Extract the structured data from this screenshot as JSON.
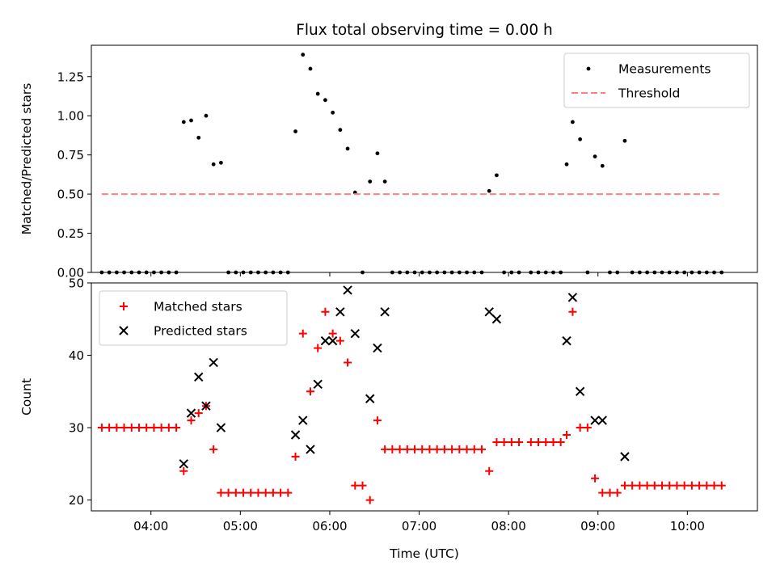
{
  "chart_data": [
    {
      "type": "scatter",
      "title": "Flux total observing time = 0.00 h",
      "xlabel": "",
      "ylabel": "Matched/Predicted stars",
      "ylim": [
        0,
        1.45
      ],
      "yticks": [
        0.0,
        0.25,
        0.5,
        0.75,
        1.0,
        1.25
      ],
      "ytick_labels": [
        "0.00",
        "0.25",
        "0.50",
        "0.75",
        "1.00",
        "1.25"
      ],
      "xlim": [
        "03:20",
        "10:47"
      ],
      "xticks": [
        "04:00",
        "05:00",
        "06:00",
        "07:00",
        "08:00",
        "09:00",
        "10:00"
      ],
      "show_xtick_labels": false,
      "legend": {
        "position": "top-right"
      },
      "series": [
        {
          "name": "Measurements",
          "kind": "points",
          "color": "#000000",
          "points": [
            [
              "03:27",
              0
            ],
            [
              "03:32",
              0
            ],
            [
              "03:37",
              0
            ],
            [
              "03:42",
              0
            ],
            [
              "03:47",
              0
            ],
            [
              "03:52",
              0
            ],
            [
              "03:57",
              0
            ],
            [
              "04:02",
              0
            ],
            [
              "04:07",
              0
            ],
            [
              "04:12",
              0
            ],
            [
              "04:17",
              0
            ],
            [
              "04:22",
              0.96
            ],
            [
              "04:27",
              0.97
            ],
            [
              "04:32",
              0.86
            ],
            [
              "04:37",
              1.0
            ],
            [
              "04:42",
              0.69
            ],
            [
              "04:47",
              0.7
            ],
            [
              "04:52",
              0
            ],
            [
              "04:57",
              0
            ],
            [
              "05:02",
              0
            ],
            [
              "05:07",
              0
            ],
            [
              "05:12",
              0
            ],
            [
              "05:17",
              0
            ],
            [
              "05:22",
              0
            ],
            [
              "05:27",
              0
            ],
            [
              "05:32",
              0
            ],
            [
              "05:37",
              0.9
            ],
            [
              "05:42",
              1.39
            ],
            [
              "05:47",
              1.3
            ],
            [
              "05:52",
              1.14
            ],
            [
              "05:57",
              1.1
            ],
            [
              "06:02",
              1.02
            ],
            [
              "06:07",
              0.91
            ],
            [
              "06:12",
              0.79
            ],
            [
              "06:17",
              0.51
            ],
            [
              "06:22",
              0
            ],
            [
              "06:27",
              0.58
            ],
            [
              "06:32",
              0.76
            ],
            [
              "06:37",
              0.58
            ],
            [
              "06:42",
              0
            ],
            [
              "06:47",
              0
            ],
            [
              "06:52",
              0
            ],
            [
              "06:57",
              0
            ],
            [
              "07:02",
              0
            ],
            [
              "07:07",
              0
            ],
            [
              "07:12",
              0
            ],
            [
              "07:17",
              0
            ],
            [
              "07:22",
              0
            ],
            [
              "07:27",
              0
            ],
            [
              "07:32",
              0
            ],
            [
              "07:37",
              0
            ],
            [
              "07:42",
              0
            ],
            [
              "07:47",
              0.52
            ],
            [
              "07:52",
              0.62
            ],
            [
              "07:57",
              0
            ],
            [
              "08:02",
              0
            ],
            [
              "08:07",
              0
            ],
            [
              "08:15",
              0
            ],
            [
              "08:20",
              0
            ],
            [
              "08:25",
              0
            ],
            [
              "08:30",
              0
            ],
            [
              "08:35",
              0
            ],
            [
              "08:39",
              0.69
            ],
            [
              "08:43",
              0.96
            ],
            [
              "08:48",
              0.85
            ],
            [
              "08:53",
              0
            ],
            [
              "08:58",
              0.74
            ],
            [
              "09:03",
              0.68
            ],
            [
              "09:08",
              0
            ],
            [
              "09:13",
              0
            ],
            [
              "09:18",
              0.84
            ],
            [
              "09:23",
              0
            ],
            [
              "09:28",
              0
            ],
            [
              "09:33",
              0
            ],
            [
              "09:38",
              0
            ],
            [
              "09:43",
              0
            ],
            [
              "09:48",
              0
            ],
            [
              "09:53",
              0
            ],
            [
              "09:58",
              0
            ],
            [
              "10:03",
              0
            ],
            [
              "10:08",
              0
            ],
            [
              "10:13",
              0
            ],
            [
              "10:18",
              0
            ],
            [
              "10:23",
              0
            ]
          ]
        },
        {
          "name": "Threshold",
          "kind": "dashed-line",
          "color": "#ff7f7f",
          "points": [
            [
              "03:27",
              0.5
            ],
            [
              "10:23",
              0.5
            ]
          ]
        }
      ]
    },
    {
      "type": "scatter",
      "title": "",
      "xlabel": "Time (UTC)",
      "ylabel": "Count",
      "ylim": [
        18.5,
        50
      ],
      "yticks": [
        20,
        30,
        40,
        50
      ],
      "ytick_labels": [
        "20",
        "30",
        "40",
        "50"
      ],
      "xlim": [
        "03:20",
        "10:47"
      ],
      "xticks": [
        "04:00",
        "05:00",
        "06:00",
        "07:00",
        "08:00",
        "09:00",
        "10:00"
      ],
      "xtick_labels": [
        "04:00",
        "05:00",
        "06:00",
        "07:00",
        "08:00",
        "09:00",
        "10:00"
      ],
      "show_xtick_labels": true,
      "legend": {
        "position": "top-left"
      },
      "series": [
        {
          "name": "Matched stars",
          "kind": "plus",
          "color": "#ff0000",
          "points": [
            [
              "03:27",
              30
            ],
            [
              "03:32",
              30
            ],
            [
              "03:37",
              30
            ],
            [
              "03:42",
              30
            ],
            [
              "03:47",
              30
            ],
            [
              "03:52",
              30
            ],
            [
              "03:57",
              30
            ],
            [
              "04:02",
              30
            ],
            [
              "04:07",
              30
            ],
            [
              "04:12",
              30
            ],
            [
              "04:17",
              30
            ],
            [
              "04:22",
              24
            ],
            [
              "04:27",
              31
            ],
            [
              "04:32",
              32
            ],
            [
              "04:37",
              33
            ],
            [
              "04:42",
              27
            ],
            [
              "04:47",
              21
            ],
            [
              "04:52",
              21
            ],
            [
              "04:57",
              21
            ],
            [
              "05:02",
              21
            ],
            [
              "05:07",
              21
            ],
            [
              "05:12",
              21
            ],
            [
              "05:17",
              21
            ],
            [
              "05:22",
              21
            ],
            [
              "05:27",
              21
            ],
            [
              "05:32",
              21
            ],
            [
              "05:37",
              26
            ],
            [
              "05:42",
              43
            ],
            [
              "05:47",
              35
            ],
            [
              "05:52",
              41
            ],
            [
              "05:57",
              46
            ],
            [
              "06:02",
              43
            ],
            [
              "06:07",
              42
            ],
            [
              "06:12",
              39
            ],
            [
              "06:17",
              22
            ],
            [
              "06:22",
              22
            ],
            [
              "06:27",
              20
            ],
            [
              "06:32",
              31
            ],
            [
              "06:37",
              27
            ],
            [
              "06:42",
              27
            ],
            [
              "06:47",
              27
            ],
            [
              "06:52",
              27
            ],
            [
              "06:57",
              27
            ],
            [
              "07:02",
              27
            ],
            [
              "07:07",
              27
            ],
            [
              "07:12",
              27
            ],
            [
              "07:17",
              27
            ],
            [
              "07:22",
              27
            ],
            [
              "07:27",
              27
            ],
            [
              "07:32",
              27
            ],
            [
              "07:37",
              27
            ],
            [
              "07:42",
              27
            ],
            [
              "07:47",
              24
            ],
            [
              "07:52",
              28
            ],
            [
              "07:57",
              28
            ],
            [
              "08:02",
              28
            ],
            [
              "08:07",
              28
            ],
            [
              "08:15",
              28
            ],
            [
              "08:20",
              28
            ],
            [
              "08:25",
              28
            ],
            [
              "08:30",
              28
            ],
            [
              "08:35",
              28
            ],
            [
              "08:39",
              29
            ],
            [
              "08:43",
              46
            ],
            [
              "08:48",
              30
            ],
            [
              "08:53",
              30
            ],
            [
              "08:58",
              23
            ],
            [
              "09:03",
              21
            ],
            [
              "09:08",
              21
            ],
            [
              "09:13",
              21
            ],
            [
              "09:18",
              22
            ],
            [
              "09:23",
              22
            ],
            [
              "09:28",
              22
            ],
            [
              "09:33",
              22
            ],
            [
              "09:38",
              22
            ],
            [
              "09:43",
              22
            ],
            [
              "09:48",
              22
            ],
            [
              "09:53",
              22
            ],
            [
              "09:58",
              22
            ],
            [
              "10:03",
              22
            ],
            [
              "10:08",
              22
            ],
            [
              "10:13",
              22
            ],
            [
              "10:18",
              22
            ],
            [
              "10:23",
              22
            ]
          ]
        },
        {
          "name": "Predicted stars",
          "kind": "x",
          "color": "#000000",
          "points": [
            [
              "04:22",
              25
            ],
            [
              "04:27",
              32
            ],
            [
              "04:32",
              37
            ],
            [
              "04:37",
              33
            ],
            [
              "04:42",
              39
            ],
            [
              "04:47",
              30
            ],
            [
              "05:37",
              29
            ],
            [
              "05:42",
              31
            ],
            [
              "05:47",
              27
            ],
            [
              "05:52",
              36
            ],
            [
              "05:57",
              42
            ],
            [
              "06:02",
              42
            ],
            [
              "06:07",
              46
            ],
            [
              "06:12",
              49
            ],
            [
              "06:17",
              43
            ],
            [
              "06:27",
              34
            ],
            [
              "06:32",
              41
            ],
            [
              "06:37",
              46
            ],
            [
              "07:47",
              46
            ],
            [
              "07:52",
              45
            ],
            [
              "08:39",
              42
            ],
            [
              "08:43",
              48
            ],
            [
              "08:48",
              35
            ],
            [
              "08:58",
              31
            ],
            [
              "09:03",
              31
            ],
            [
              "09:18",
              26
            ]
          ]
        }
      ]
    }
  ]
}
